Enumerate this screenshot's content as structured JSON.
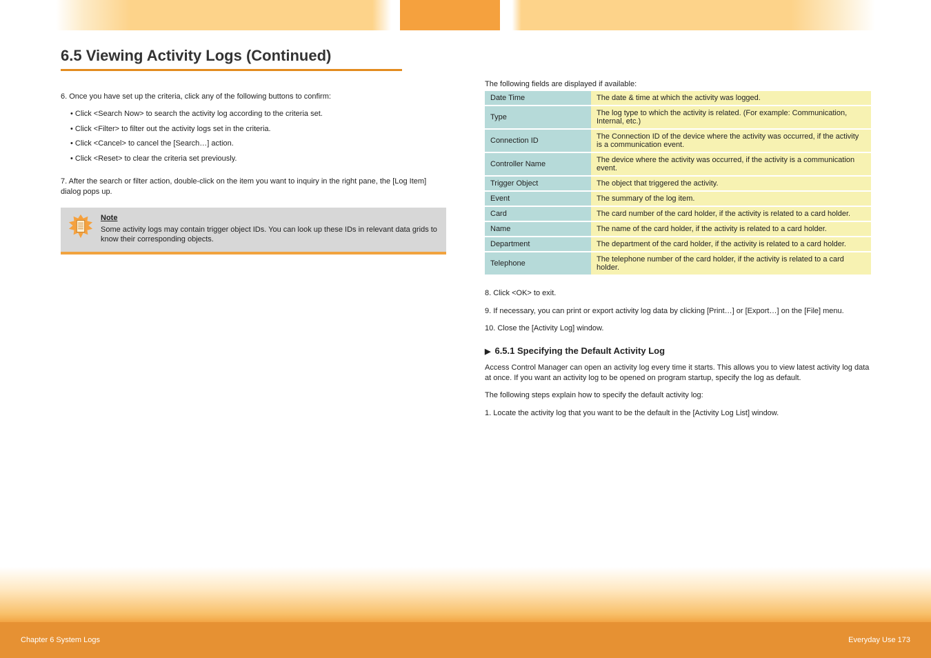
{
  "colors": {
    "accent_orange": "#f5a13e",
    "tab_fade": "#fdd38a",
    "rule_orange": "#e38b1f",
    "note_bg": "#d7d7d7",
    "note_bottom": "#f1a33f",
    "field_key_bg": "#b6dad9",
    "field_val_bg": "#f7f2b2",
    "footer_bg": "#e69133",
    "text": "#222222"
  },
  "topnav": {
    "segments": [
      "left-fade",
      "active-solid",
      "right-fade"
    ]
  },
  "section": {
    "title": "6.5 Viewing Activity Logs (Continued)"
  },
  "left": {
    "intro1": "6. Once you have set up the criteria, click any of the following buttons to confirm:",
    "bullets": [
      "Click <Search Now> to search the activity log according to the criteria set.",
      "Click <Filter> to filter out the activity logs set in the criteria.",
      "Click <Cancel> to cancel the [Search…] action.",
      "Click <Reset> to clear the criteria set previously."
    ],
    "intro2": "7. After the search or filter action, double-click on the item you want to inquiry in the right pane, the [Log Item] dialog pops up.",
    "note_head": "Note",
    "note_body": "Some activity logs may contain trigger object IDs. You can look up these IDs in relevant data grids to know their corresponding objects."
  },
  "right": {
    "fields_intro": "The following fields are displayed if available:",
    "fields": [
      {
        "k": "Date Time",
        "v": "The date & time at which the activity was logged."
      },
      {
        "k": "Type",
        "v": "The log type to which the activity is related. (For example: Communication, Internal, etc.)"
      },
      {
        "k": "Connection ID",
        "v": "The Connection ID of the device where the activity was occurred, if the activity is a communication event."
      },
      {
        "k": "Controller Name",
        "v": "The device where the activity was occurred, if the activity is a communication event."
      },
      {
        "k": "Trigger Object",
        "v": "The object that triggered the activity."
      },
      {
        "k": "Event",
        "v": "The summary of the log item."
      },
      {
        "k": "Card",
        "v": "The card number of the card holder, if the activity is related to a card holder."
      },
      {
        "k": "Name",
        "v": "The name of the card holder, if the activity is related to a card holder."
      },
      {
        "k": "Department",
        "v": "The department of the card holder, if the activity is related to a card holder."
      },
      {
        "k": "Telephone",
        "v": "The telephone number of the card holder, if the activity is related to a card holder."
      }
    ],
    "after1": "8. Click <OK> to exit.",
    "after2": "9. If necessary, you can print or export activity log data by clicking [Print…] or [Export…] on the [File] menu.",
    "after3": "10. Close the [Activity Log] window.",
    "sub_title": "6.5.1 Specifying the Default Activity Log",
    "sub_paras": [
      "Access Control Manager can open an activity log every time it starts. This allows you to view latest activity log data at once. If you want an activity log to be opened on program startup, specify the log as default.",
      "The following steps explain how to specify the default activity log:",
      "1. Locate the activity log that you want to be the default in the [Activity Log List] window."
    ]
  },
  "footer": {
    "left": "Chapter 6  System Logs",
    "right": "Everyday Use 173"
  }
}
